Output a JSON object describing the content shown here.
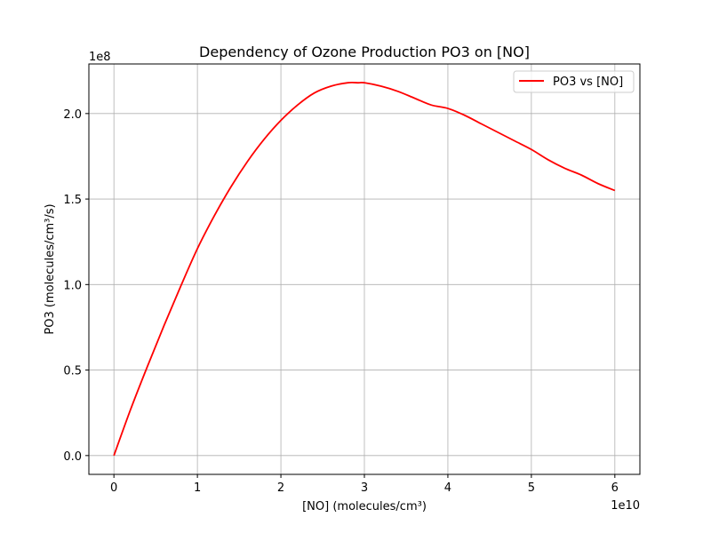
{
  "chart_data": {
    "type": "line",
    "title": "Dependency of Ozone Production PO3 on [NO]",
    "xlabel": "[NO] (molecules/cm³)",
    "ylabel": "PO3 (molecules/cm³/s)",
    "x_offset_label": "1e10",
    "y_offset_label": "1e8",
    "xlim": [
      -3.0,
      63.0
    ],
    "ylim": [
      -0.11,
      2.29
    ],
    "x_ticks": [
      0,
      10,
      20,
      30,
      40,
      50,
      60
    ],
    "x_tick_labels": [
      "0",
      "1",
      "2",
      "3",
      "4",
      "5",
      "6"
    ],
    "y_ticks": [
      0.0,
      0.5,
      1.0,
      1.5,
      2.0
    ],
    "y_tick_labels": [
      "0.0",
      "0.5",
      "1.0",
      "1.5",
      "2.0"
    ],
    "x_unit_note": "x values in units of 1e9 molecules/cm³ (axis shows ×1e10)",
    "y_unit_note": "y values in units of 1e8 molecules/cm³/s",
    "grid": true,
    "legend_position": "top-right",
    "series": [
      {
        "name": "PO3 vs [NO]",
        "color": "#ff0000",
        "x": [
          0,
          2,
          4,
          6,
          8,
          10,
          12,
          14,
          16,
          18,
          20,
          22,
          24,
          26,
          28,
          29.3,
          30,
          32,
          34,
          36,
          38,
          40,
          42,
          44,
          46,
          48,
          50,
          52,
          54,
          56,
          58,
          60
        ],
        "y": [
          0.0,
          0.27,
          0.52,
          0.76,
          0.99,
          1.21,
          1.4,
          1.57,
          1.72,
          1.85,
          1.96,
          2.05,
          2.12,
          2.16,
          2.18,
          2.18,
          2.18,
          2.16,
          2.13,
          2.09,
          2.05,
          2.03,
          1.99,
          1.94,
          1.89,
          1.84,
          1.79,
          1.73,
          1.68,
          1.64,
          1.59,
          1.55
        ]
      }
    ]
  }
}
